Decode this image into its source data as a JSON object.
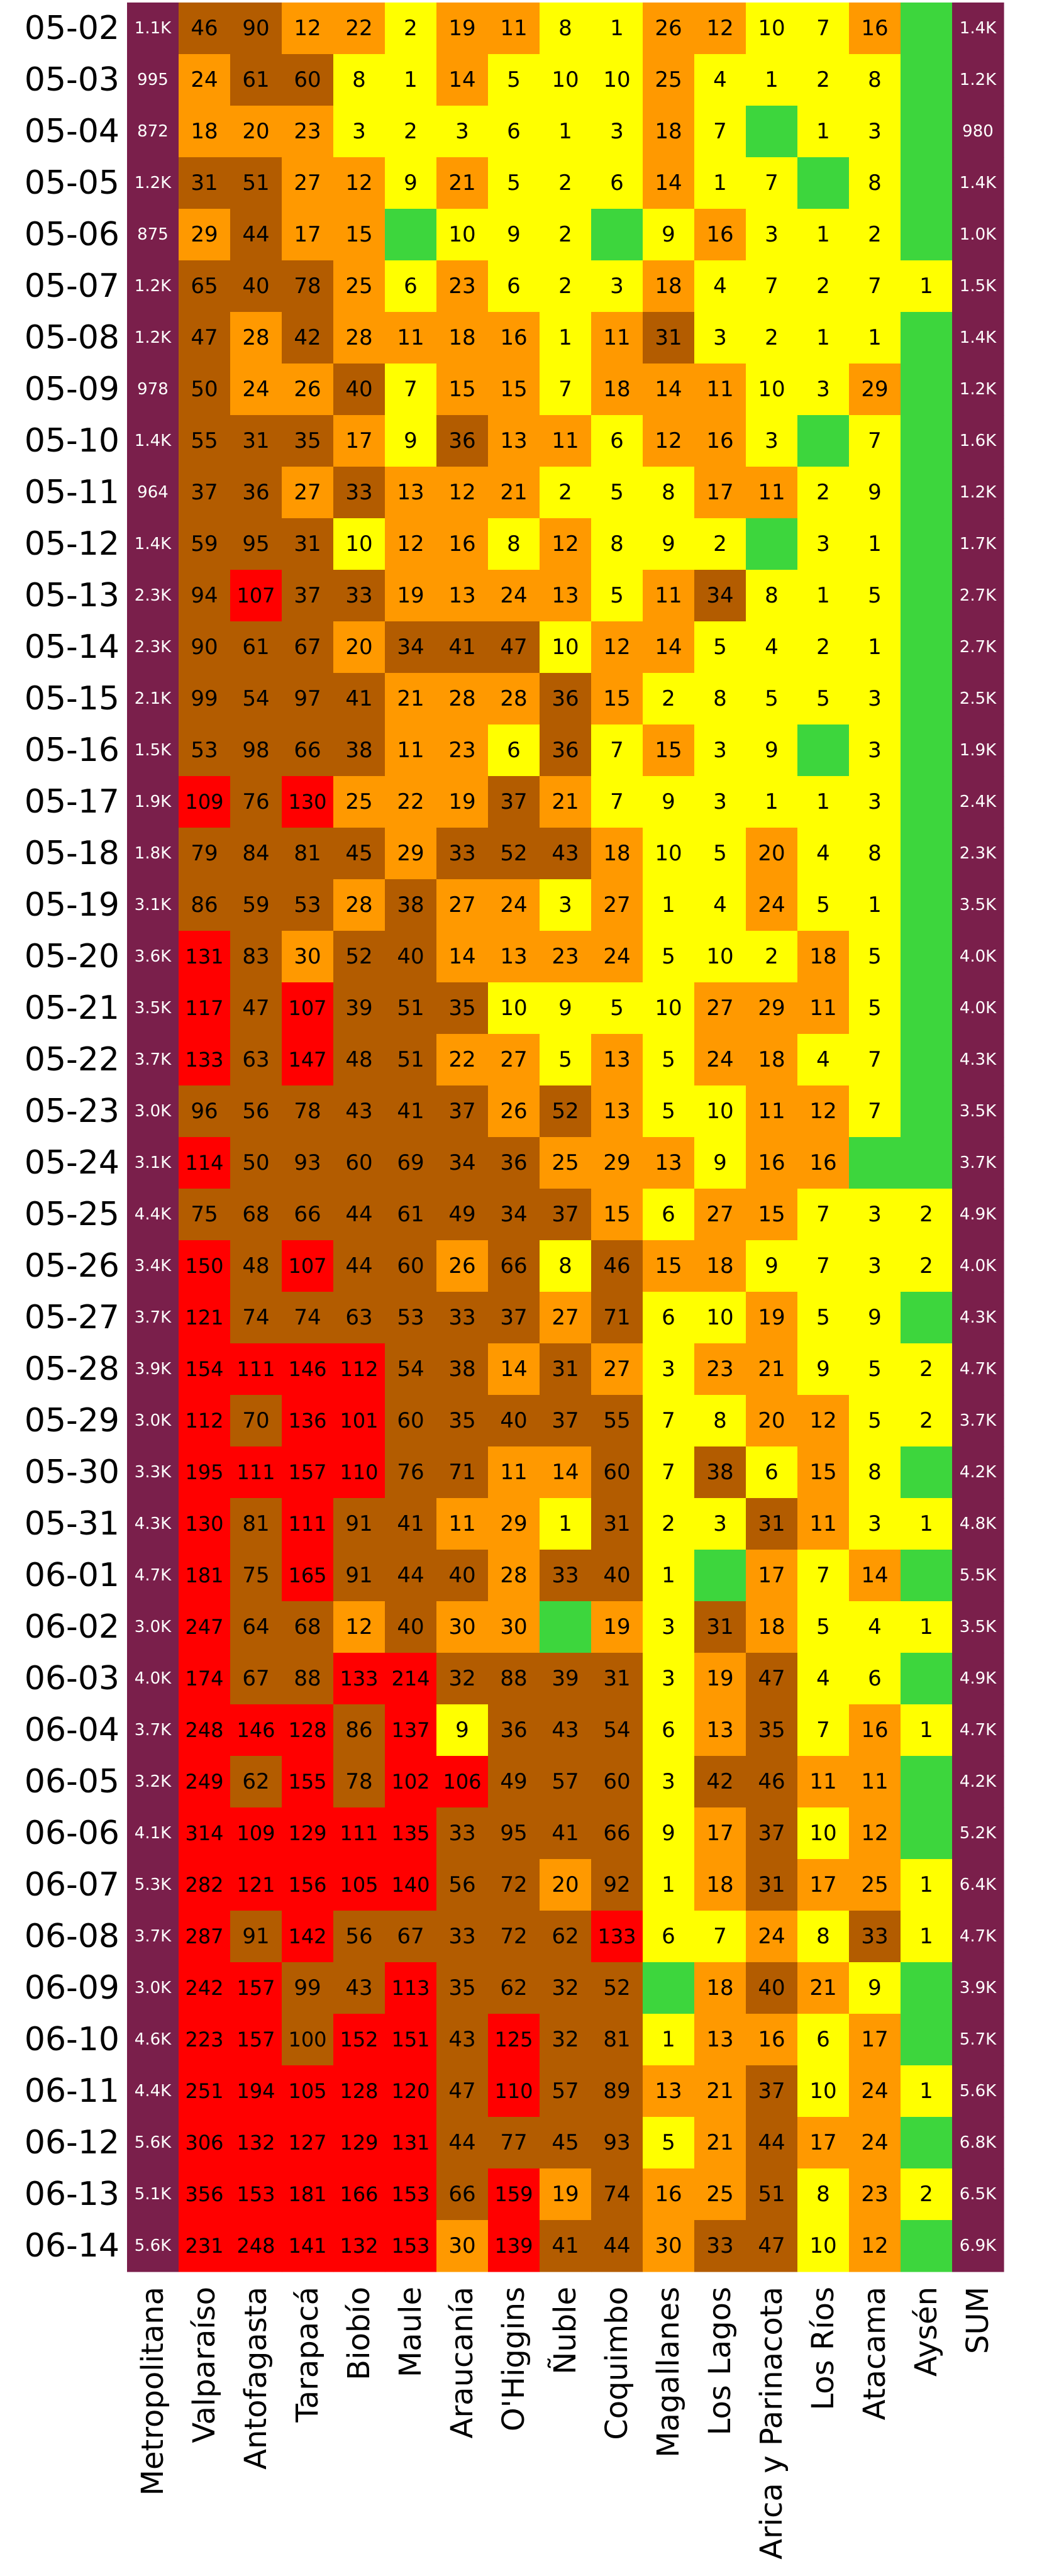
{
  "chart_data": {
    "type": "heatmap",
    "title": "",
    "xlabel": "",
    "ylabel": "",
    "columns": [
      "Metropolitana",
      "Valparaíso",
      "Antofagasta",
      "Tarapacá",
      "Biobío",
      "Maule",
      "Araucanía",
      "O'Higgins",
      "Ñuble",
      "Coquimbo",
      "Magallanes",
      "Los Lagos",
      "Arica y Parinacota",
      "Los Ríos",
      "Atacama",
      "Aysén",
      "SUM"
    ],
    "rows": [
      "05-02",
      "05-03",
      "05-04",
      "05-05",
      "05-06",
      "05-07",
      "05-08",
      "05-09",
      "05-10",
      "05-11",
      "05-12",
      "05-13",
      "05-14",
      "05-15",
      "05-16",
      "05-17",
      "05-18",
      "05-19",
      "05-20",
      "05-21",
      "05-22",
      "05-23",
      "05-24",
      "05-25",
      "05-26",
      "05-27",
      "05-28",
      "05-29",
      "05-30",
      "05-31",
      "06-01",
      "06-02",
      "06-03",
      "06-04",
      "06-05",
      "06-06",
      "06-07",
      "06-08",
      "06-09",
      "06-10",
      "06-11",
      "06-12",
      "06-13",
      "06-14"
    ],
    "cell_labels": [
      [
        "1.1K",
        "46",
        "90",
        "12",
        "22",
        "2",
        "19",
        "11",
        "8",
        "1",
        "26",
        "12",
        "10",
        "7",
        "16",
        "",
        "1.4K"
      ],
      [
        "995",
        "24",
        "61",
        "60",
        "8",
        "1",
        "14",
        "5",
        "10",
        "10",
        "25",
        "4",
        "1",
        "2",
        "8",
        "",
        "1.2K"
      ],
      [
        "872",
        "18",
        "20",
        "23",
        "3",
        "2",
        "3",
        "6",
        "1",
        "3",
        "18",
        "7",
        "",
        "1",
        "3",
        "",
        "980"
      ],
      [
        "1.2K",
        "31",
        "51",
        "27",
        "12",
        "9",
        "21",
        "5",
        "2",
        "6",
        "14",
        "1",
        "7",
        "",
        "8",
        "",
        "1.4K"
      ],
      [
        "875",
        "29",
        "44",
        "17",
        "15",
        "",
        "10",
        "9",
        "2",
        "",
        "9",
        "16",
        "3",
        "1",
        "2",
        "",
        "1.0K"
      ],
      [
        "1.2K",
        "65",
        "40",
        "78",
        "25",
        "6",
        "23",
        "6",
        "2",
        "3",
        "18",
        "4",
        "7",
        "2",
        "7",
        "1",
        "1.5K"
      ],
      [
        "1.2K",
        "47",
        "28",
        "42",
        "28",
        "11",
        "18",
        "16",
        "1",
        "11",
        "31",
        "3",
        "2",
        "1",
        "1",
        "",
        "1.4K"
      ],
      [
        "978",
        "50",
        "24",
        "26",
        "40",
        "7",
        "15",
        "15",
        "7",
        "18",
        "14",
        "11",
        "10",
        "3",
        "29",
        "",
        "1.2K"
      ],
      [
        "1.4K",
        "55",
        "31",
        "35",
        "17",
        "9",
        "36",
        "13",
        "11",
        "6",
        "12",
        "16",
        "3",
        "",
        "7",
        "",
        "1.6K"
      ],
      [
        "964",
        "37",
        "36",
        "27",
        "33",
        "13",
        "12",
        "21",
        "2",
        "5",
        "8",
        "17",
        "11",
        "2",
        "9",
        "",
        "1.2K"
      ],
      [
        "1.4K",
        "59",
        "95",
        "31",
        "10",
        "12",
        "16",
        "8",
        "12",
        "8",
        "9",
        "2",
        "",
        "3",
        "1",
        "",
        "1.7K"
      ],
      [
        "2.3K",
        "94",
        "107",
        "37",
        "33",
        "19",
        "13",
        "24",
        "13",
        "5",
        "11",
        "34",
        "8",
        "1",
        "5",
        "",
        "2.7K"
      ],
      [
        "2.3K",
        "90",
        "61",
        "67",
        "20",
        "34",
        "41",
        "47",
        "10",
        "12",
        "14",
        "5",
        "4",
        "2",
        "1",
        "",
        "2.7K"
      ],
      [
        "2.1K",
        "99",
        "54",
        "97",
        "41",
        "21",
        "28",
        "28",
        "36",
        "15",
        "2",
        "8",
        "5",
        "5",
        "3",
        "",
        "2.5K"
      ],
      [
        "1.5K",
        "53",
        "98",
        "66",
        "38",
        "11",
        "23",
        "6",
        "36",
        "7",
        "15",
        "3",
        "9",
        "",
        "3",
        "",
        "1.9K"
      ],
      [
        "1.9K",
        "109",
        "76",
        "130",
        "25",
        "22",
        "19",
        "37",
        "21",
        "7",
        "9",
        "3",
        "1",
        "1",
        "3",
        "",
        "2.4K"
      ],
      [
        "1.8K",
        "79",
        "84",
        "81",
        "45",
        "29",
        "33",
        "52",
        "43",
        "18",
        "10",
        "5",
        "20",
        "4",
        "8",
        "",
        "2.3K"
      ],
      [
        "3.1K",
        "86",
        "59",
        "53",
        "28",
        "38",
        "27",
        "24",
        "3",
        "27",
        "1",
        "4",
        "24",
        "5",
        "1",
        "",
        "3.5K"
      ],
      [
        "3.6K",
        "131",
        "83",
        "30",
        "52",
        "40",
        "14",
        "13",
        "23",
        "24",
        "5",
        "10",
        "2",
        "18",
        "5",
        "",
        "4.0K"
      ],
      [
        "3.5K",
        "117",
        "47",
        "107",
        "39",
        "51",
        "35",
        "10",
        "9",
        "5",
        "10",
        "27",
        "29",
        "11",
        "5",
        "",
        "4.0K"
      ],
      [
        "3.7K",
        "133",
        "63",
        "147",
        "48",
        "51",
        "22",
        "27",
        "5",
        "13",
        "5",
        "24",
        "18",
        "4",
        "7",
        "",
        "4.3K"
      ],
      [
        "3.0K",
        "96",
        "56",
        "78",
        "43",
        "41",
        "37",
        "26",
        "52",
        "13",
        "5",
        "10",
        "11",
        "12",
        "7",
        "",
        "3.5K"
      ],
      [
        "3.1K",
        "114",
        "50",
        "93",
        "60",
        "69",
        "34",
        "36",
        "25",
        "29",
        "13",
        "9",
        "16",
        "16",
        "",
        "",
        "3.7K"
      ],
      [
        "4.4K",
        "75",
        "68",
        "66",
        "44",
        "61",
        "49",
        "34",
        "37",
        "15",
        "6",
        "27",
        "15",
        "7",
        "3",
        "2",
        "4.9K"
      ],
      [
        "3.4K",
        "150",
        "48",
        "107",
        "44",
        "60",
        "26",
        "66",
        "8",
        "46",
        "15",
        "18",
        "9",
        "7",
        "3",
        "2",
        "4.0K"
      ],
      [
        "3.7K",
        "121",
        "74",
        "74",
        "63",
        "53",
        "33",
        "37",
        "27",
        "71",
        "6",
        "10",
        "19",
        "5",
        "9",
        "",
        "4.3K"
      ],
      [
        "3.9K",
        "154",
        "111",
        "146",
        "112",
        "54",
        "38",
        "14",
        "31",
        "27",
        "3",
        "23",
        "21",
        "9",
        "5",
        "2",
        "4.7K"
      ],
      [
        "3.0K",
        "112",
        "70",
        "136",
        "101",
        "60",
        "35",
        "40",
        "37",
        "55",
        "7",
        "8",
        "20",
        "12",
        "5",
        "2",
        "3.7K"
      ],
      [
        "3.3K",
        "195",
        "111",
        "157",
        "110",
        "76",
        "71",
        "11",
        "14",
        "60",
        "7",
        "38",
        "6",
        "15",
        "8",
        "",
        "4.2K"
      ],
      [
        "4.3K",
        "130",
        "81",
        "111",
        "91",
        "41",
        "11",
        "29",
        "1",
        "31",
        "2",
        "3",
        "31",
        "11",
        "3",
        "1",
        "4.8K"
      ],
      [
        "4.7K",
        "181",
        "75",
        "165",
        "91",
        "44",
        "40",
        "28",
        "33",
        "40",
        "1",
        "",
        "17",
        "7",
        "14",
        "",
        "5.5K"
      ],
      [
        "3.0K",
        "247",
        "64",
        "68",
        "12",
        "40",
        "30",
        "30",
        "",
        "19",
        "3",
        "31",
        "18",
        "5",
        "4",
        "1",
        "3.5K"
      ],
      [
        "4.0K",
        "174",
        "67",
        "88",
        "133",
        "214",
        "32",
        "88",
        "39",
        "31",
        "3",
        "19",
        "47",
        "4",
        "6",
        "",
        "4.9K"
      ],
      [
        "3.7K",
        "248",
        "146",
        "128",
        "86",
        "137",
        "9",
        "36",
        "43",
        "54",
        "6",
        "13",
        "35",
        "7",
        "16",
        "1",
        "4.7K"
      ],
      [
        "3.2K",
        "249",
        "62",
        "155",
        "78",
        "102",
        "106",
        "49",
        "57",
        "60",
        "3",
        "42",
        "46",
        "11",
        "11",
        "",
        "4.2K"
      ],
      [
        "4.1K",
        "314",
        "109",
        "129",
        "111",
        "135",
        "33",
        "95",
        "41",
        "66",
        "9",
        "17",
        "37",
        "10",
        "12",
        "",
        "5.2K"
      ],
      [
        "5.3K",
        "282",
        "121",
        "156",
        "105",
        "140",
        "56",
        "72",
        "20",
        "92",
        "1",
        "18",
        "31",
        "17",
        "25",
        "1",
        "6.4K"
      ],
      [
        "3.7K",
        "287",
        "91",
        "142",
        "56",
        "67",
        "33",
        "72",
        "62",
        "133",
        "6",
        "7",
        "24",
        "8",
        "33",
        "1",
        "4.7K"
      ],
      [
        "3.0K",
        "242",
        "157",
        "99",
        "43",
        "113",
        "35",
        "62",
        "32",
        "52",
        "",
        "18",
        "40",
        "21",
        "9",
        "",
        "3.9K"
      ],
      [
        "4.6K",
        "223",
        "157",
        "100",
        "152",
        "151",
        "43",
        "125",
        "32",
        "81",
        "1",
        "13",
        "16",
        "6",
        "17",
        "",
        "5.7K"
      ],
      [
        "4.4K",
        "251",
        "194",
        "105",
        "128",
        "120",
        "47",
        "110",
        "57",
        "89",
        "13",
        "21",
        "37",
        "10",
        "24",
        "1",
        "5.6K"
      ],
      [
        "5.6K",
        "306",
        "132",
        "127",
        "129",
        "131",
        "44",
        "77",
        "45",
        "93",
        "5",
        "21",
        "44",
        "17",
        "24",
        "",
        "6.8K"
      ],
      [
        "5.1K",
        "356",
        "153",
        "181",
        "166",
        "153",
        "66",
        "159",
        "19",
        "74",
        "16",
        "25",
        "51",
        "8",
        "23",
        "2",
        "6.5K"
      ],
      [
        "5.6K",
        "231",
        "248",
        "141",
        "132",
        "153",
        "30",
        "139",
        "41",
        "44",
        "30",
        "33",
        "47",
        "10",
        "12",
        "",
        "6.9K"
      ]
    ],
    "colors": {
      "zero": "#3dd63d",
      "low": "#ffff00",
      "mid": "#ff9900",
      "high": "#b35c00",
      "very_high": "#ff0000",
      "total": "#7a1f4b",
      "dark_text": "#000000",
      "light_text": "#ffffff"
    }
  }
}
